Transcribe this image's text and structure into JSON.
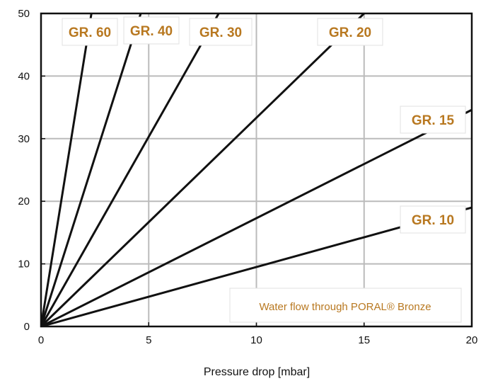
{
  "chart_data": {
    "type": "line",
    "title": "",
    "xlabel": "Pressure drop [mbar]",
    "ylabel": "",
    "xlim": [
      0,
      20
    ],
    "ylim": [
      0,
      50
    ],
    "x_ticks": [
      "0",
      "5",
      "10",
      "15",
      "20"
    ],
    "y_ticks": [
      "0",
      "10",
      "20",
      "30",
      "40",
      "50"
    ],
    "grid": true,
    "annotation": "Water flow through PORAL® Bronze",
    "series": [
      {
        "name": "GR. 60",
        "points": [
          [
            0,
            0
          ],
          [
            2.34,
            50
          ]
        ]
      },
      {
        "name": "GR. 40",
        "points": [
          [
            0,
            0
          ],
          [
            4.63,
            50
          ]
        ]
      },
      {
        "name": "GR. 30",
        "points": [
          [
            0,
            0
          ],
          [
            8.25,
            50
          ]
        ]
      },
      {
        "name": "GR. 20",
        "points": [
          [
            0,
            0
          ],
          [
            15.0,
            50
          ]
        ]
      },
      {
        "name": "GR. 15",
        "points": [
          [
            0,
            0
          ],
          [
            20.0,
            34.6
          ]
        ]
      },
      {
        "name": "GR. 10",
        "points": [
          [
            0,
            0
          ],
          [
            20.0,
            19.0
          ]
        ]
      }
    ]
  },
  "colors": {
    "line": "#111111",
    "grid": "#bbbbbb",
    "label_text": "#b87820",
    "label_border": "#e0e0e0",
    "axis": "#111111"
  }
}
